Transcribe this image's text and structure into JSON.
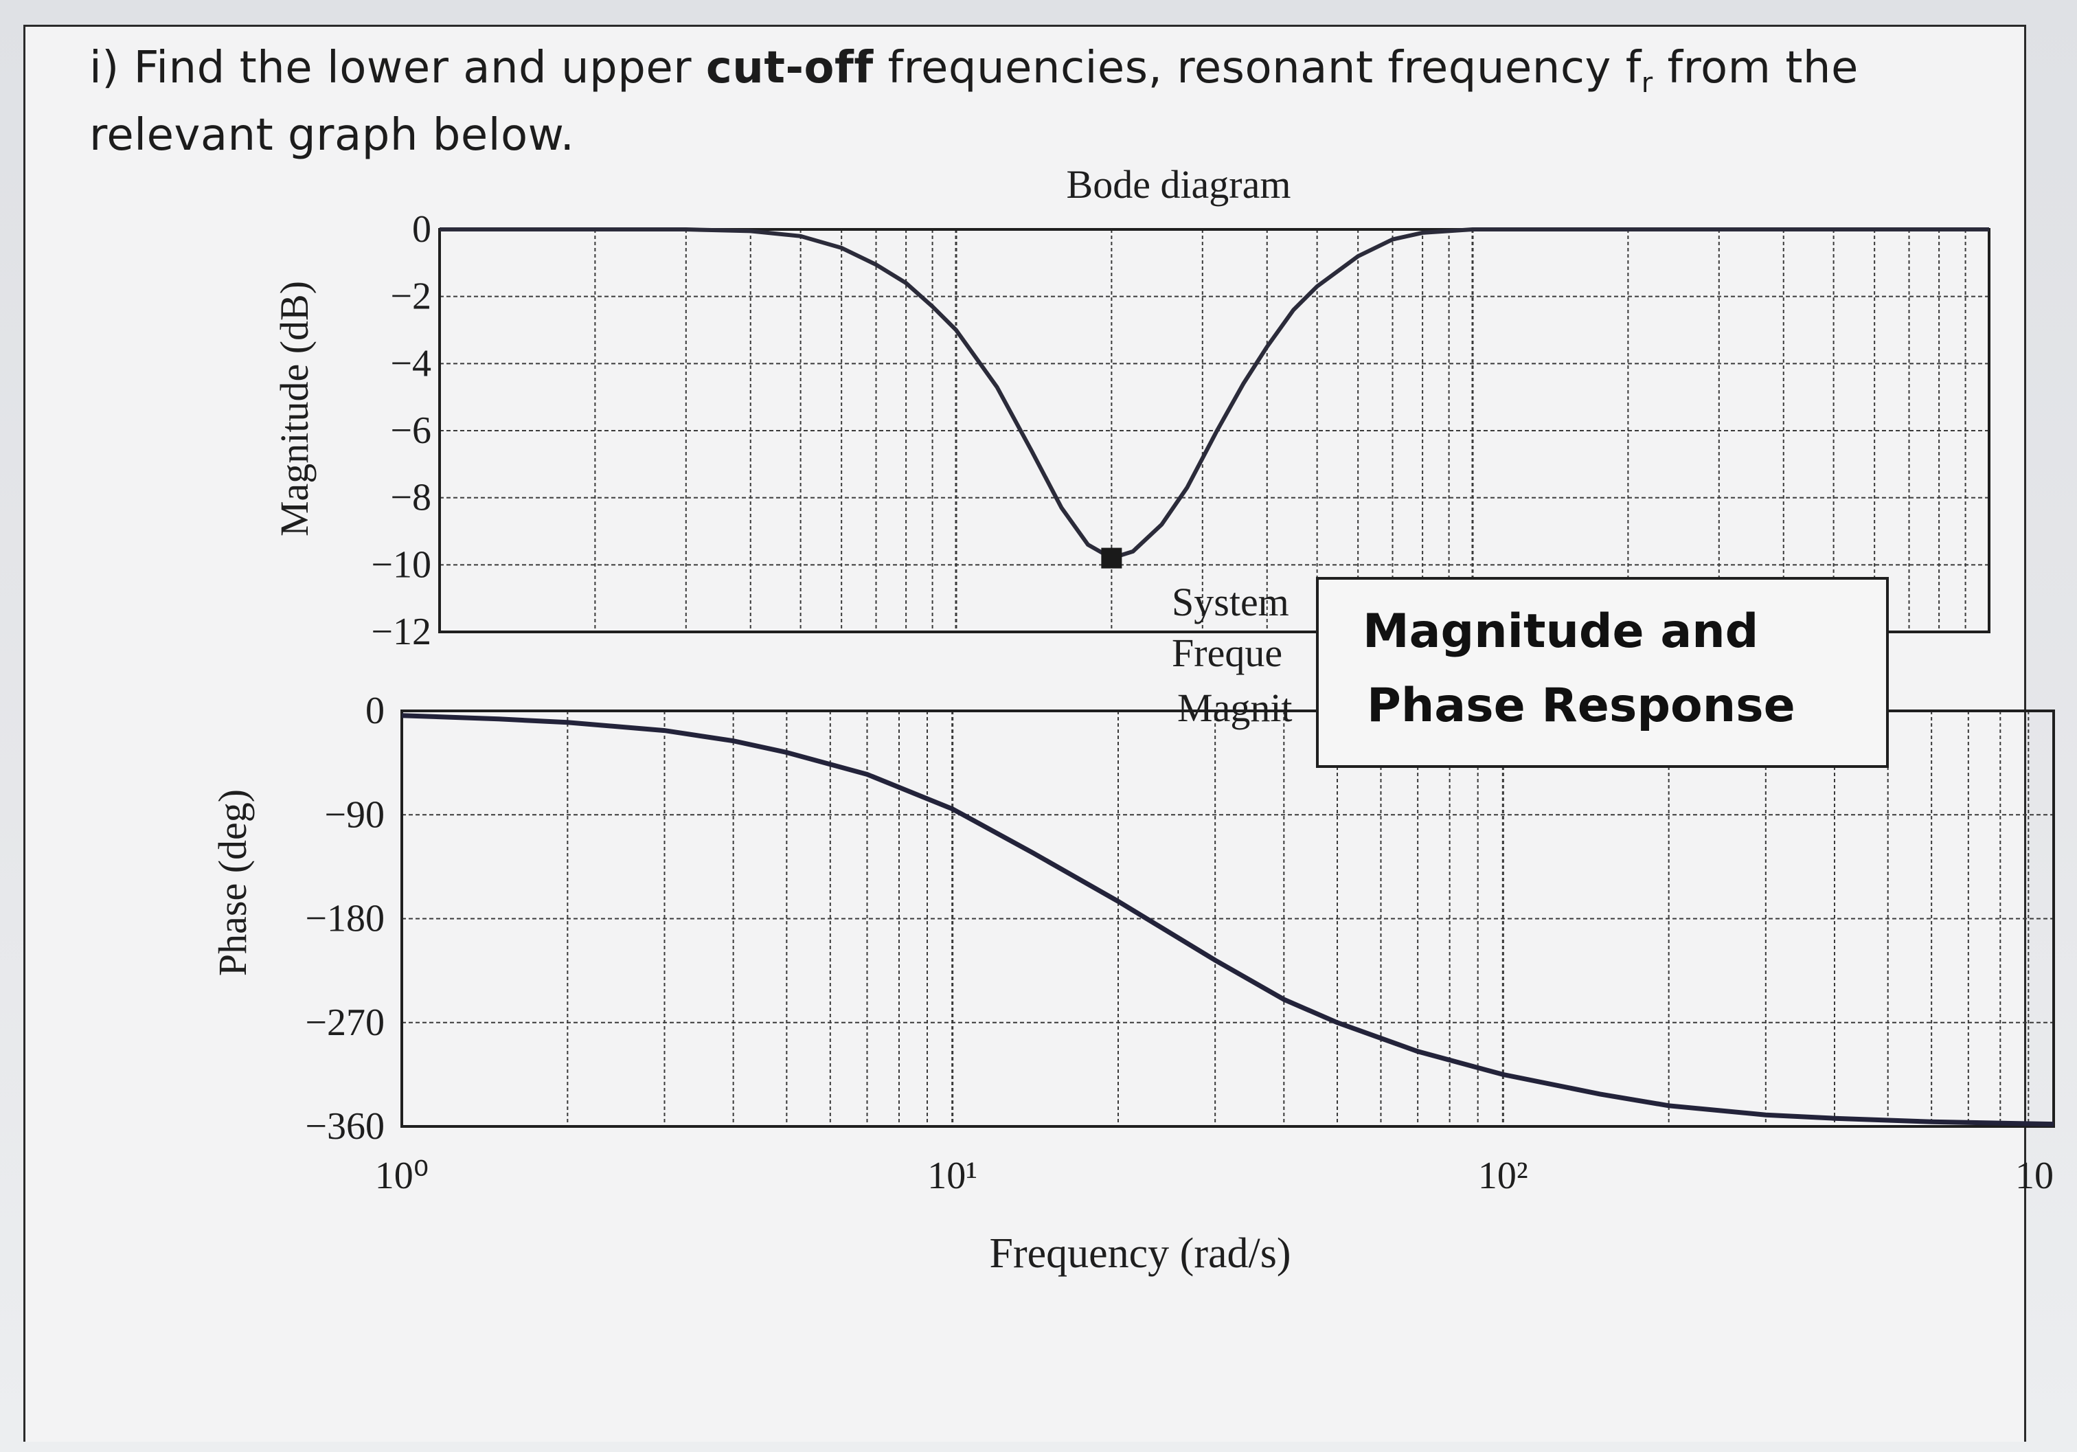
{
  "question": {
    "prefix": "i) Find the lower and upper ",
    "bold": "cut-off",
    "middle": " frequencies, resonant frequency f",
    "sub": "r",
    "suffix": " from the",
    "line2": "relevant graph below."
  },
  "legend": {
    "under_text": [
      "System",
      "Freque",
      "Magnit"
    ],
    "title_line1": "Magnitude and",
    "title_line2": "Phase Response"
  },
  "chart_data": [
    {
      "type": "line",
      "title": "Bode diagram",
      "xlabel": "Frequency (rad/s)",
      "ylabel": "Magnitude (dB)",
      "xscale": "log",
      "xlim": [
        1,
        1000
      ],
      "ylim": [
        -12,
        0
      ],
      "x_ticklabels": [
        "10⁰",
        "10¹",
        "10²",
        "10"
      ],
      "y_ticks": [
        "0",
        "−2",
        "−4",
        "−6",
        "−8",
        "−10",
        "−12"
      ],
      "grid": true,
      "marker": {
        "x": 20,
        "y": -9.8
      },
      "series": [
        {
          "x": [
            1,
            2,
            3,
            4,
            5,
            6,
            7,
            8,
            9,
            10,
            12,
            14,
            16,
            18,
            20,
            22,
            25,
            28,
            32,
            36,
            40,
            45,
            50,
            60,
            70,
            80,
            100,
            150,
            200,
            400,
            700,
            1000
          ],
          "values": [
            0,
            0,
            0,
            -0.05,
            -0.2,
            -0.55,
            -1.05,
            -1.6,
            -2.3,
            -3.0,
            -4.7,
            -6.6,
            -8.3,
            -9.4,
            -9.8,
            -9.6,
            -8.8,
            -7.7,
            -6.0,
            -4.6,
            -3.5,
            -2.4,
            -1.7,
            -0.8,
            -0.3,
            -0.1,
            0,
            0,
            0,
            0,
            0,
            0
          ]
        }
      ]
    },
    {
      "type": "line",
      "xlabel": "Frequency (rad/s)",
      "ylabel": "Phase (deg)",
      "xscale": "log",
      "xlim": [
        1,
        1000
      ],
      "ylim": [
        -360,
        0
      ],
      "y_ticks": [
        "0",
        "−90",
        "−180",
        "−270",
        "−360"
      ],
      "grid": true,
      "series": [
        {
          "x": [
            1,
            1.5,
            2,
            3,
            4,
            5,
            7,
            10,
            14,
            20,
            30,
            40,
            50,
            70,
            100,
            150,
            200,
            300,
            400,
            600,
            1000
          ],
          "values": [
            -4,
            -7,
            -10,
            -17,
            -26,
            -36,
            -55,
            -85,
            -123,
            -165,
            -216,
            -250,
            -270,
            -295,
            -315,
            -332,
            -342,
            -350,
            -353,
            -356,
            -358
          ]
        }
      ]
    }
  ]
}
